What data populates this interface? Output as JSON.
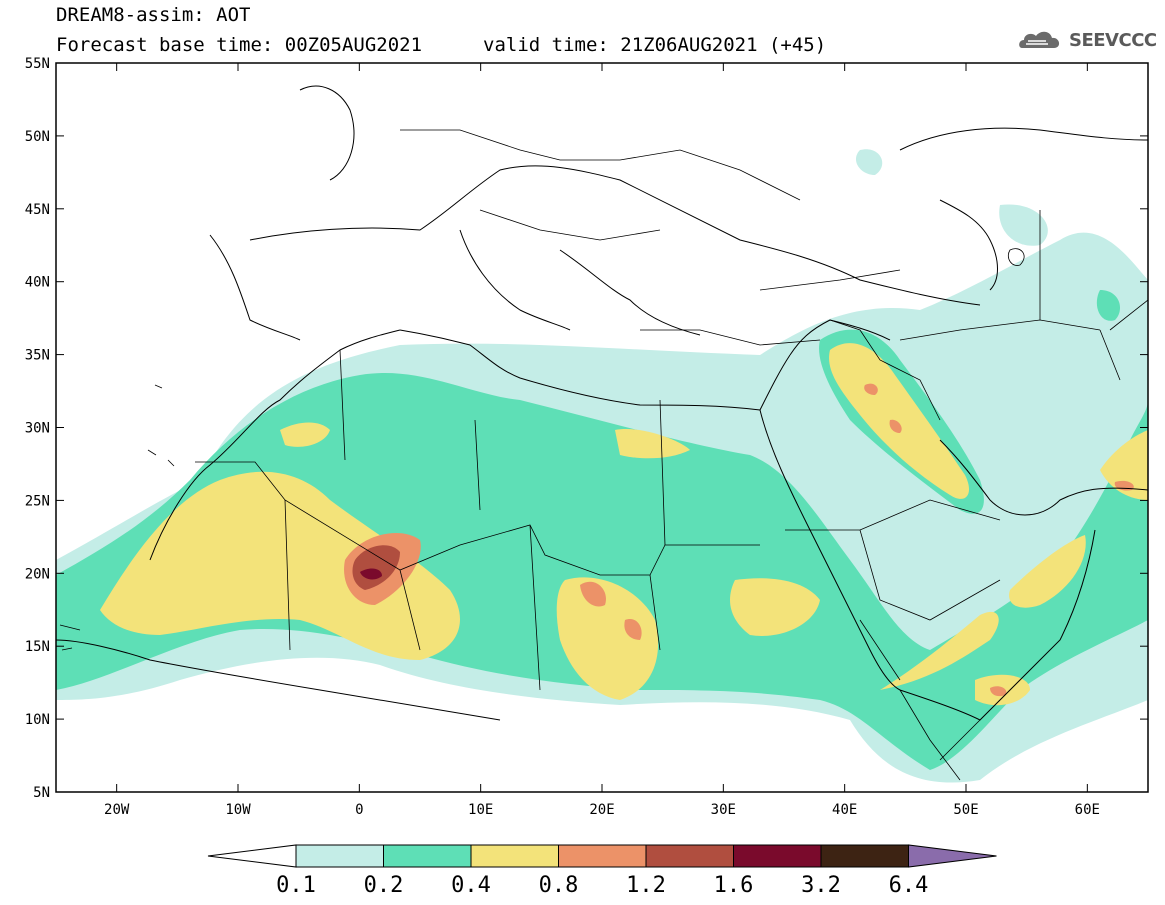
{
  "header": {
    "line1": "DREAM8-assim: AOT",
    "base_time": "Forecast base time: 00Z05AUG2021",
    "valid_time": "valid time: 21Z06AUG2021 (+45)",
    "logo_text": "SEEVCCC"
  },
  "map": {
    "lat_labels": [
      "55N",
      "50N",
      "45N",
      "40N",
      "35N",
      "30N",
      "25N",
      "20N",
      "15N",
      "10N",
      "5N"
    ],
    "lon_labels": [
      "20W",
      "10W",
      "0",
      "10E",
      "20E",
      "30E",
      "40E",
      "50E",
      "60E"
    ],
    "extent": {
      "lon": [
        -25,
        65
      ],
      "lat": [
        5,
        55
      ]
    }
  },
  "colorbar": {
    "levels": [
      "0.1",
      "0.2",
      "0.4",
      "0.8",
      "1.2",
      "1.6",
      "3.2",
      "6.4"
    ],
    "colors": [
      "#ffffff",
      "#c4ede7",
      "#5edfb6",
      "#f3e37a",
      "#ec9268",
      "#b04e3f",
      "#7a0a2c",
      "#3d2313",
      "#8a6cab"
    ]
  },
  "colors": {
    "c01": "#c4ede7",
    "c02": "#5edfb6",
    "c04": "#f3e37a",
    "c08": "#ec9268",
    "c12": "#b04e3f",
    "c16": "#7a0a2c"
  }
}
